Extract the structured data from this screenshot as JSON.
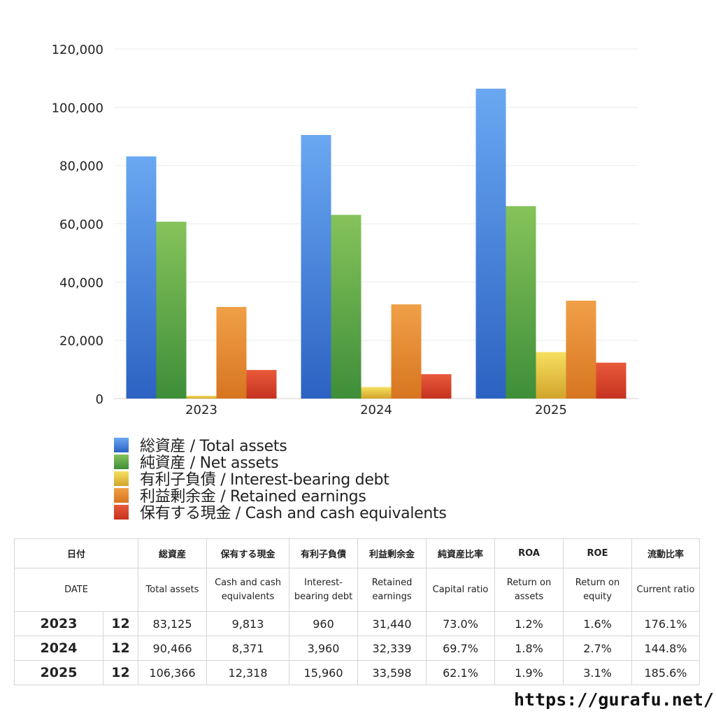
{
  "chart_data": {
    "type": "bar",
    "categories": [
      "2023",
      "2024",
      "2025"
    ],
    "series": [
      {
        "name": "総資産 / Total assets",
        "values": [
          83125,
          90466,
          106366
        ]
      },
      {
        "name": "純資産 / Net assets",
        "values": [
          60700,
          63050,
          66050
        ]
      },
      {
        "name": "有利子負債 / Interest-bearing debt",
        "values": [
          960,
          3960,
          15960
        ]
      },
      {
        "name": "利益剰余金 / Retained earnings",
        "values": [
          31440,
          32339,
          33598
        ]
      },
      {
        "name": "保有する現金 /  Cash and cash equivalents",
        "values": [
          9813,
          8371,
          12318
        ]
      }
    ],
    "colors": [
      {
        "top": "#6aa8f2",
        "bottom": "#2c62c2"
      },
      {
        "top": "#86c35a",
        "bottom": "#3e8e39"
      },
      {
        "top": "#f6e060",
        "bottom": "#d2a42c"
      },
      {
        "top": "#f0a048",
        "bottom": "#d87520"
      },
      {
        "top": "#e85a3a",
        "bottom": "#c63220"
      }
    ],
    "ylim": [
      0,
      120000
    ],
    "yticks": [
      "0",
      "20,000",
      "40,000",
      "60,000",
      "80,000",
      "100,000",
      "120,000"
    ],
    "ytick_values": [
      0,
      20000,
      40000,
      60000,
      80000,
      100000,
      120000
    ],
    "grid": true,
    "legend_position": "bottom"
  },
  "table": {
    "header_jp": [
      "日付",
      "総資産",
      "保有する現金",
      "有利子負債",
      "利益剰余金",
      "純資産比率",
      "ROA",
      "ROE",
      "流動比率"
    ],
    "header_en": [
      "DATE",
      "Total assets",
      "Cash and cash equivalents",
      "Interest-bearing debt",
      "Retained earnings",
      "Capital ratio",
      "Return on assets",
      "Return on equity",
      "Current ratio"
    ],
    "rows": [
      {
        "year": "2023",
        "month": "12",
        "total_assets": "83,125",
        "cash": "9,813",
        "debt": "960",
        "retained": "31,440",
        "capital_ratio": "73.0%",
        "roa": "1.2%",
        "roe": "1.6%",
        "current_ratio": "176.1%"
      },
      {
        "year": "2024",
        "month": "12",
        "total_assets": "90,466",
        "cash": "8,371",
        "debt": "3,960",
        "retained": "32,339",
        "capital_ratio": "69.7%",
        "roa": "1.8%",
        "roe": "2.7%",
        "current_ratio": "144.8%"
      },
      {
        "year": "2025",
        "month": "12",
        "total_assets": "106,366",
        "cash": "12,318",
        "debt": "15,960",
        "retained": "33,598",
        "capital_ratio": "62.1%",
        "roa": "1.9%",
        "roe": "3.1%",
        "current_ratio": "185.6%"
      }
    ]
  },
  "footer": {
    "url": "https://gurafu.net/"
  }
}
